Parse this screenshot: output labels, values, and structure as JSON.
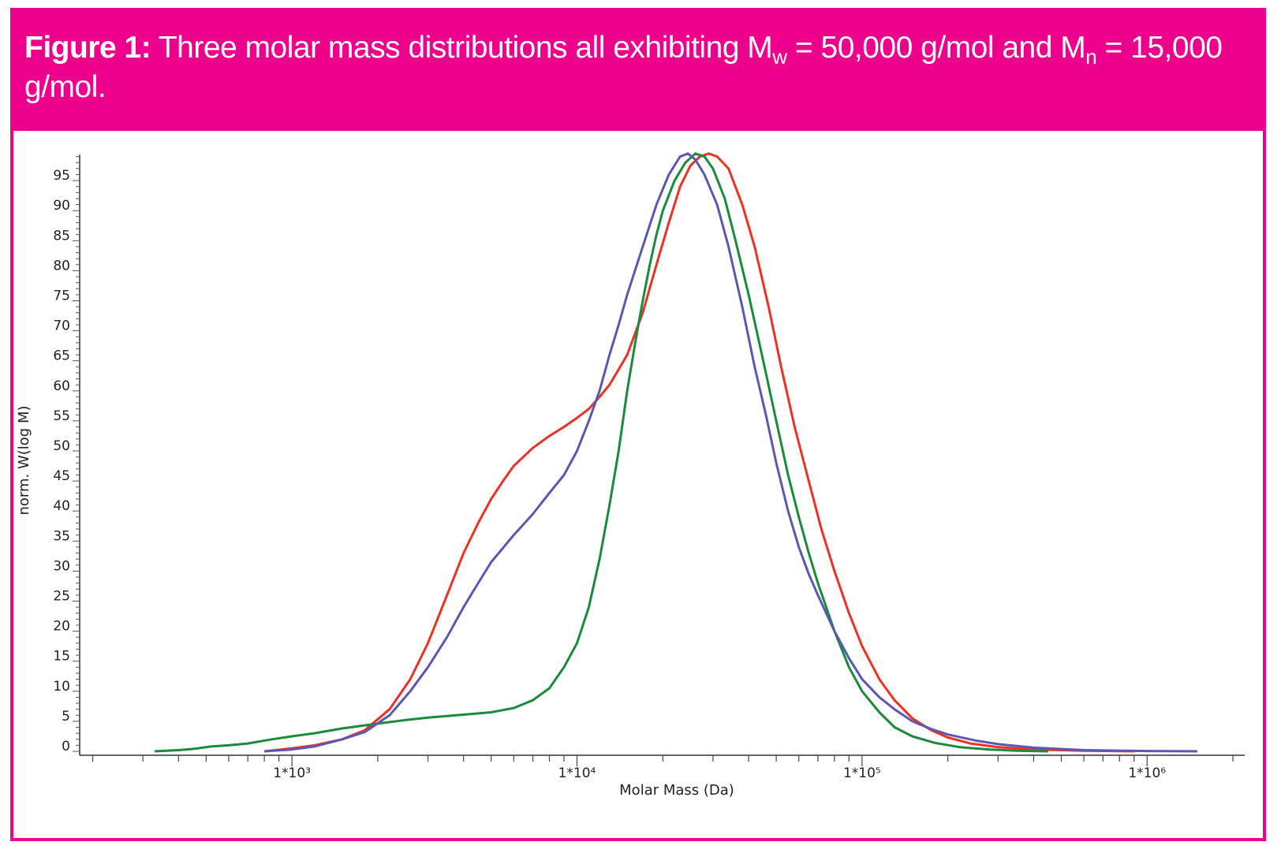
{
  "figure": {
    "label": "Figure 1:",
    "text_a": " Three molar mass distributions all exhibiting M",
    "sub_w": "w",
    "text_b": " = 50,000 g/mol and M",
    "sub_n": "n",
    "text_c": " = 15,000 g/mol."
  },
  "colors": {
    "accent": "#ec008c",
    "red": "#ee3124",
    "green": "#1a8a3c",
    "blue": "#5b57b3"
  },
  "chart_data": {
    "type": "line",
    "title": "Three molar mass distributions all exhibiting Mw = 50,000 g/mol and Mn = 15,000 g/mol.",
    "xlabel": "Molar Mass (Da)",
    "ylabel": "norm. W(log M)",
    "xscale": "log",
    "xlim": [
      180,
      2200000
    ],
    "ylim": [
      0,
      100
    ],
    "yticks": [
      0,
      5,
      10,
      15,
      20,
      25,
      30,
      35,
      40,
      45,
      50,
      55,
      60,
      65,
      70,
      75,
      80,
      85,
      90,
      95
    ],
    "xtick_labels": [
      {
        "value": 1000,
        "label": "1*10³"
      },
      {
        "value": 10000,
        "label": "1*10⁴"
      },
      {
        "value": 100000,
        "label": "1*10⁵"
      },
      {
        "value": 1000000,
        "label": "1*10⁶"
      }
    ],
    "grid": false,
    "series": [
      {
        "name": "red",
        "color": "#ee3124",
        "points": [
          [
            800,
            0
          ],
          [
            1000,
            0.5
          ],
          [
            1200,
            1
          ],
          [
            1500,
            2
          ],
          [
            1800,
            3.5
          ],
          [
            2200,
            7
          ],
          [
            2600,
            12
          ],
          [
            3000,
            18
          ],
          [
            3500,
            26
          ],
          [
            4000,
            33
          ],
          [
            4500,
            38
          ],
          [
            5000,
            42
          ],
          [
            5500,
            45
          ],
          [
            6000,
            47.5
          ],
          [
            7000,
            50.5
          ],
          [
            8000,
            52.5
          ],
          [
            9000,
            54
          ],
          [
            10000,
            55.5
          ],
          [
            11000,
            57
          ],
          [
            12000,
            59
          ],
          [
            13000,
            61
          ],
          [
            15000,
            66
          ],
          [
            17000,
            73
          ],
          [
            19000,
            81
          ],
          [
            21000,
            88
          ],
          [
            23000,
            94
          ],
          [
            25000,
            97.5
          ],
          [
            27000,
            99
          ],
          [
            29000,
            99.5
          ],
          [
            31000,
            99
          ],
          [
            34000,
            97
          ],
          [
            38000,
            91
          ],
          [
            42000,
            84
          ],
          [
            47000,
            74
          ],
          [
            52000,
            64
          ],
          [
            58000,
            54
          ],
          [
            65000,
            45
          ],
          [
            72000,
            37
          ],
          [
            80000,
            30
          ],
          [
            90000,
            23
          ],
          [
            100000,
            17.5
          ],
          [
            115000,
            12
          ],
          [
            130000,
            8.5
          ],
          [
            150000,
            5.5
          ],
          [
            175000,
            3.5
          ],
          [
            200000,
            2.3
          ],
          [
            240000,
            1.3
          ],
          [
            300000,
            0.7
          ],
          [
            400000,
            0.3
          ],
          [
            600000,
            0.1
          ],
          [
            900000,
            0
          ]
        ]
      },
      {
        "name": "green",
        "color": "#1a8a3c",
        "points": [
          [
            330,
            0
          ],
          [
            400,
            0.2
          ],
          [
            450,
            0.4
          ],
          [
            520,
            0.8
          ],
          [
            600,
            1
          ],
          [
            700,
            1.3
          ],
          [
            850,
            2
          ],
          [
            1000,
            2.5
          ],
          [
            1200,
            3
          ],
          [
            1500,
            3.8
          ],
          [
            2000,
            4.6
          ],
          [
            2500,
            5.2
          ],
          [
            3000,
            5.6
          ],
          [
            4000,
            6.1
          ],
          [
            5000,
            6.5
          ],
          [
            6000,
            7.2
          ],
          [
            7000,
            8.5
          ],
          [
            8000,
            10.5
          ],
          [
            9000,
            14
          ],
          [
            10000,
            18
          ],
          [
            11000,
            24
          ],
          [
            12000,
            32
          ],
          [
            13000,
            41
          ],
          [
            14000,
            50
          ],
          [
            15000,
            60
          ],
          [
            16000,
            68
          ],
          [
            17000,
            75
          ],
          [
            18000,
            81
          ],
          [
            19000,
            86
          ],
          [
            20000,
            90
          ],
          [
            22000,
            95
          ],
          [
            24000,
            98
          ],
          [
            26000,
            99.5
          ],
          [
            28000,
            99
          ],
          [
            30000,
            97
          ],
          [
            33000,
            92
          ],
          [
            36000,
            85
          ],
          [
            40000,
            76
          ],
          [
            45000,
            65
          ],
          [
            50000,
            55
          ],
          [
            55000,
            46
          ],
          [
            60000,
            39
          ],
          [
            65000,
            33
          ],
          [
            70000,
            28
          ],
          [
            80000,
            20
          ],
          [
            90000,
            14
          ],
          [
            100000,
            10
          ],
          [
            115000,
            6.5
          ],
          [
            130000,
            4
          ],
          [
            150000,
            2.5
          ],
          [
            180000,
            1.4
          ],
          [
            220000,
            0.7
          ],
          [
            280000,
            0.3
          ],
          [
            350000,
            0.1
          ],
          [
            450000,
            0
          ]
        ]
      },
      {
        "name": "blue",
        "color": "#5b57b3",
        "points": [
          [
            800,
            0
          ],
          [
            1000,
            0.3
          ],
          [
            1200,
            0.8
          ],
          [
            1500,
            2
          ],
          [
            1800,
            3.2
          ],
          [
            2200,
            6
          ],
          [
            2600,
            10
          ],
          [
            3000,
            14
          ],
          [
            3500,
            19
          ],
          [
            4000,
            24
          ],
          [
            4500,
            28
          ],
          [
            5000,
            31.5
          ],
          [
            6000,
            36
          ],
          [
            7000,
            39.5
          ],
          [
            8000,
            43
          ],
          [
            9000,
            46
          ],
          [
            10000,
            50
          ],
          [
            11000,
            55
          ],
          [
            12000,
            60
          ],
          [
            13000,
            66
          ],
          [
            14000,
            71
          ],
          [
            15000,
            76
          ],
          [
            17000,
            84
          ],
          [
            19000,
            91
          ],
          [
            21000,
            96
          ],
          [
            23000,
            99
          ],
          [
            24500,
            99.5
          ],
          [
            26000,
            98.5
          ],
          [
            28000,
            96
          ],
          [
            31000,
            91
          ],
          [
            34000,
            84
          ],
          [
            38000,
            74
          ],
          [
            42000,
            64
          ],
          [
            46000,
            56
          ],
          [
            50000,
            48
          ],
          [
            55000,
            40
          ],
          [
            60000,
            34
          ],
          [
            65000,
            29.5
          ],
          [
            70000,
            26
          ],
          [
            80000,
            20
          ],
          [
            90000,
            15.5
          ],
          [
            100000,
            12
          ],
          [
            115000,
            9
          ],
          [
            130000,
            7
          ],
          [
            150000,
            5
          ],
          [
            175000,
            3.7
          ],
          [
            200000,
            2.8
          ],
          [
            250000,
            1.8
          ],
          [
            300000,
            1.2
          ],
          [
            400000,
            0.6
          ],
          [
            600000,
            0.2
          ],
          [
            1000000,
            0.05
          ],
          [
            1500000,
            0
          ]
        ]
      }
    ]
  }
}
